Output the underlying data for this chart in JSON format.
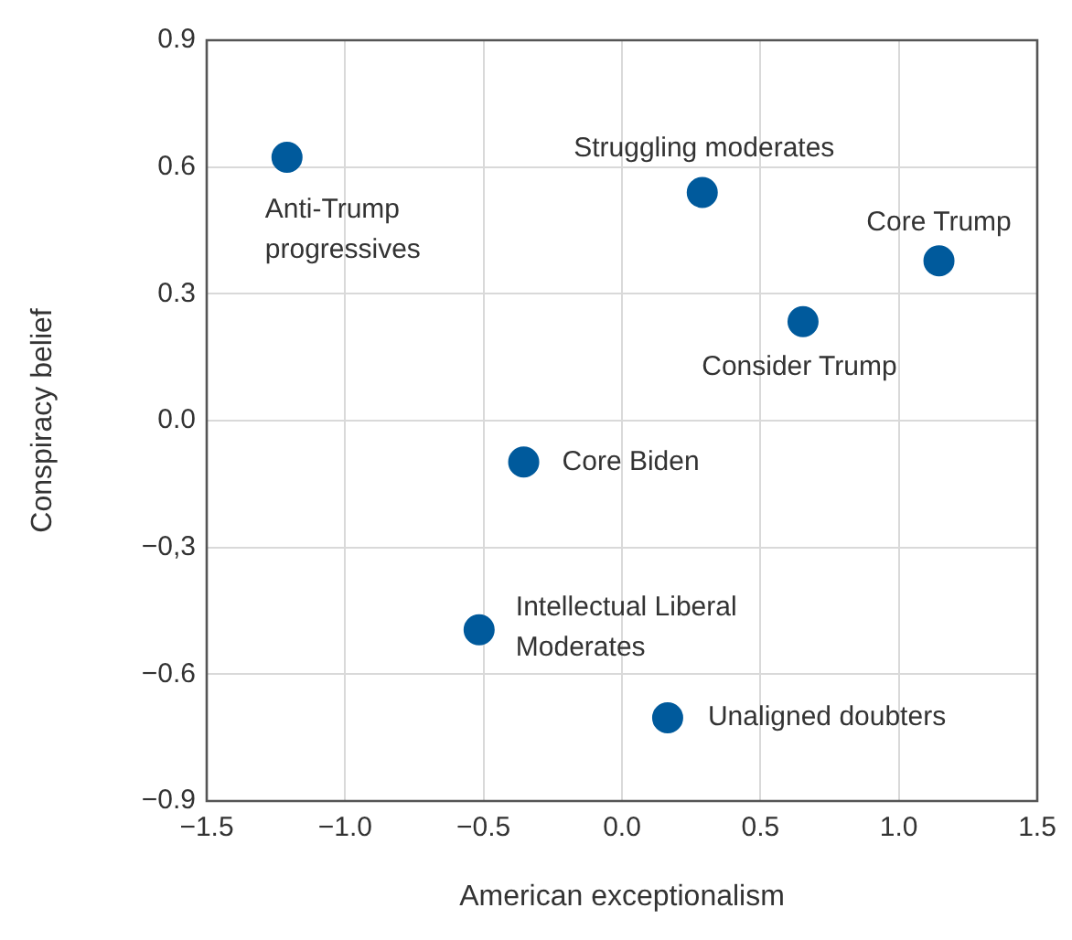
{
  "chart_data": {
    "type": "scatter",
    "xlabel": "American exceptionalism",
    "ylabel": "Conspiracy belief",
    "x": [
      -1.21,
      0.29,
      1.145,
      0.654,
      -0.355,
      -0.516,
      0.165
    ],
    "series": [
      {
        "color": "#005a9c",
        "values": [
          0.623,
          0.54,
          0.378,
          0.234,
          -0.098,
          -0.495,
          -0.703
        ]
      }
    ],
    "xlim": [
      -1.5,
      1.5
    ],
    "ylim": [
      -0.9,
      0.9
    ],
    "xticks": [
      {
        "value": -1.5,
        "label": "−1.5"
      },
      {
        "value": -1.0,
        "label": "−1.0"
      },
      {
        "value": -0.5,
        "label": "−0.5"
      },
      {
        "value": 0,
        "label": "0.0"
      },
      {
        "value": 0.5,
        "label": "0.5"
      },
      {
        "value": 1.0,
        "label": "1.0"
      },
      {
        "value": 1.5,
        "label": "1.5"
      }
    ],
    "yticks": [
      {
        "value": -0.9,
        "label": "−0.9"
      },
      {
        "value": -0.6,
        "label": "−0.6"
      },
      {
        "value": -0.3,
        "label": "−0,3"
      },
      {
        "value": 0,
        "label": "0.0"
      },
      {
        "value": 0.3,
        "label": "0.3"
      },
      {
        "value": 0.6,
        "label": "0.6"
      },
      {
        "value": 0.9,
        "label": "0.9"
      }
    ],
    "grid": true,
    "legend": false,
    "marker": "circle",
    "annotations": [
      {
        "text": "Anti-Trump\nprogressives",
        "x": -1.21,
        "y": 0.623
      },
      {
        "text": "Struggling moderates",
        "x": 0.29,
        "y": 0.54
      },
      {
        "text": "Core Trump",
        "x": 1.145,
        "y": 0.378
      },
      {
        "text": "Consider Trump",
        "x": 0.654,
        "y": 0.234
      },
      {
        "text": "Core Biden",
        "x": -0.355,
        "y": -0.098
      },
      {
        "text": "Intellectual Liberal\nModerates",
        "x": -0.516,
        "y": -0.495
      },
      {
        "text": "Unaligned doubters",
        "x": 0.165,
        "y": -0.703
      }
    ]
  }
}
